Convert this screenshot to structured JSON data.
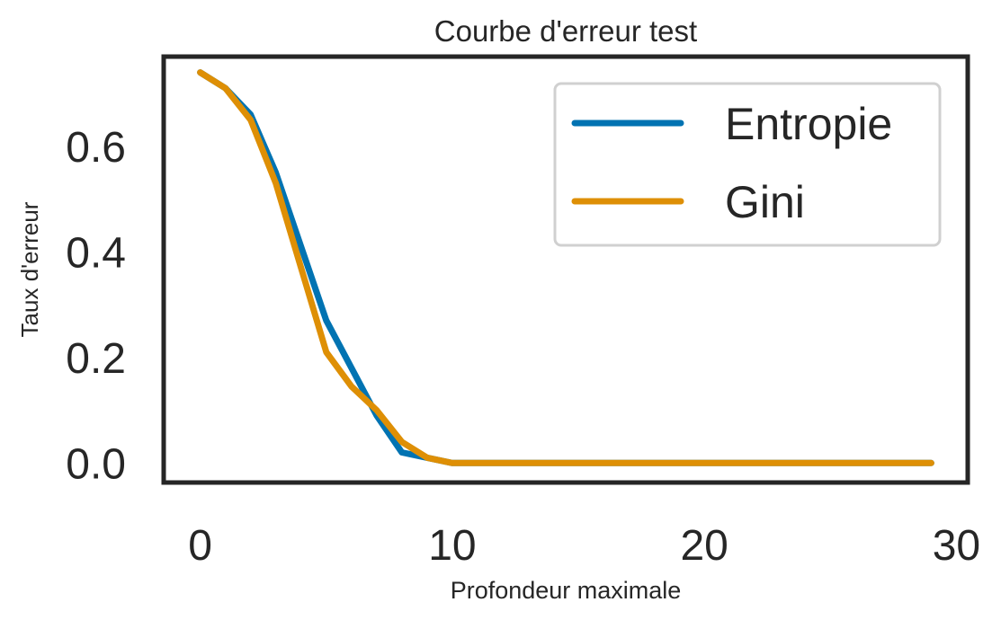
{
  "chart_data": {
    "type": "line",
    "title": "Courbe d'erreur test",
    "xlabel": "Profondeur maximale",
    "ylabel": "Taux d'erreur",
    "xlim": [
      -1.45,
      30.45
    ],
    "ylim": [
      -0.037,
      0.77
    ],
    "xticks": [
      0,
      10,
      20,
      30
    ],
    "yticks": [
      0.0,
      0.2,
      0.4,
      0.6
    ],
    "ytick_labels": [
      "0.0",
      "0.2",
      "0.4",
      "0.6"
    ],
    "grid": false,
    "legend_position": "upper right",
    "x": [
      0,
      1,
      2,
      3,
      4,
      5,
      6,
      7,
      8,
      9,
      10,
      11,
      12,
      13,
      14,
      15,
      16,
      17,
      18,
      19,
      20,
      21,
      22,
      23,
      24,
      25,
      26,
      27,
      28,
      29
    ],
    "series": [
      {
        "name": "Entropie",
        "color": "#0173b2",
        "values": [
          0.74,
          0.71,
          0.66,
          0.55,
          0.41,
          0.27,
          0.18,
          0.09,
          0.02,
          0.01,
          0.0,
          0.0,
          0.0,
          0.0,
          0.0,
          0.0,
          0.0,
          0.0,
          0.0,
          0.0,
          0.0,
          0.0,
          0.0,
          0.0,
          0.0,
          0.0,
          0.0,
          0.0,
          0.0,
          0.0
        ]
      },
      {
        "name": "Gini",
        "color": "#de8f05",
        "values": [
          0.74,
          0.71,
          0.65,
          0.53,
          0.37,
          0.21,
          0.145,
          0.1,
          0.04,
          0.01,
          0.0,
          0.0,
          0.0,
          0.0,
          0.0,
          0.0,
          0.0,
          0.0,
          0.0,
          0.0,
          0.0,
          0.0,
          0.0,
          0.0,
          0.0,
          0.0,
          0.0,
          0.0,
          0.0,
          0.0
        ]
      }
    ]
  }
}
